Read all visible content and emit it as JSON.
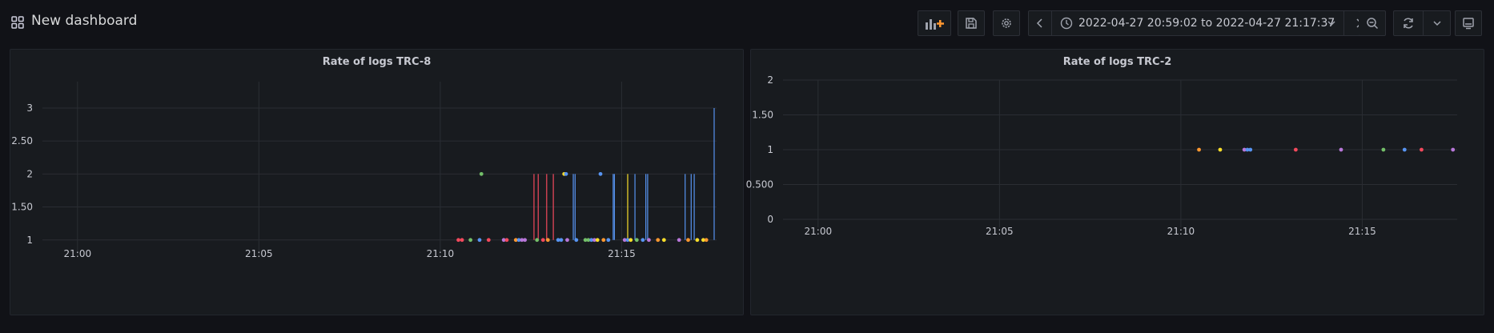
{
  "header": {
    "title": "New dashboard",
    "time_range": "2022-04-27 20:59:02 to 2022-04-27 21:17:37"
  },
  "colors": {
    "background": "#111217",
    "panel": "#181b1f",
    "green": "#73bf69",
    "yellow": "#fade2a",
    "blue": "#5794f2",
    "orange": "#ff9830",
    "red": "#f2495c",
    "purple": "#b877d9"
  },
  "icons": [
    "dashboard-grid-icon",
    "add-panel-icon",
    "save-icon",
    "settings-gear-icon",
    "chevron-left-icon",
    "clock-icon",
    "chevron-down-icon",
    "chevron-right-icon",
    "zoom-out-icon",
    "refresh-icon",
    "tv-mode-icon"
  ],
  "chart_data": [
    {
      "type": "line",
      "title": "Rate of logs TRC-8",
      "xlabel": "",
      "ylabel": "",
      "x_ticks": [
        "21:00",
        "21:05",
        "21:10",
        "21:15"
      ],
      "y_ticks": [
        "1",
        "1.50",
        "2",
        "2.50",
        "3"
      ],
      "ylim": [
        0.9,
        3.4
      ],
      "xlim": [
        "20:59:02",
        "21:17:37"
      ],
      "grid": true,
      "points": [
        {
          "t": "21:10:30",
          "v": 1,
          "color": "red"
        },
        {
          "t": "21:10:36",
          "v": 1,
          "color": "red"
        },
        {
          "t": "21:10:50",
          "v": 1,
          "color": "green"
        },
        {
          "t": "21:11:05",
          "v": 1,
          "color": "blue"
        },
        {
          "t": "21:11:08",
          "v": 2,
          "color": "green"
        },
        {
          "t": "21:11:20",
          "v": 1,
          "color": "red"
        },
        {
          "t": "21:11:45",
          "v": 1,
          "color": "purple"
        },
        {
          "t": "21:11:50",
          "v": 1,
          "color": "red"
        },
        {
          "t": "21:12:05",
          "v": 1,
          "color": "orange"
        },
        {
          "t": "21:12:10",
          "v": 1,
          "color": "blue"
        },
        {
          "t": "21:12:15",
          "v": 1,
          "color": "purple"
        },
        {
          "t": "21:12:20",
          "v": 1,
          "color": "purple"
        },
        {
          "t": "21:12:40",
          "v": 1,
          "color": "green"
        },
        {
          "t": "21:12:50",
          "v": 1,
          "color": "red"
        },
        {
          "t": "21:12:58",
          "v": 1,
          "color": "orange"
        },
        {
          "t": "21:13:15",
          "v": 1,
          "color": "blue"
        },
        {
          "t": "21:13:20",
          "v": 1,
          "color": "blue"
        },
        {
          "t": "21:13:25",
          "v": 2,
          "color": "yellow"
        },
        {
          "t": "21:13:28",
          "v": 2,
          "color": "blue"
        },
        {
          "t": "21:13:30",
          "v": 1,
          "color": "purple"
        },
        {
          "t": "21:13:45",
          "v": 1,
          "color": "blue"
        },
        {
          "t": "21:14:00",
          "v": 1,
          "color": "green"
        },
        {
          "t": "21:14:05",
          "v": 1,
          "color": "green"
        },
        {
          "t": "21:14:10",
          "v": 1,
          "color": "blue"
        },
        {
          "t": "21:14:15",
          "v": 1,
          "color": "purple"
        },
        {
          "t": "21:14:20",
          "v": 1,
          "color": "yellow"
        },
        {
          "t": "21:14:25",
          "v": 2,
          "color": "blue"
        },
        {
          "t": "21:14:30",
          "v": 1,
          "color": "orange"
        },
        {
          "t": "21:14:38",
          "v": 1,
          "color": "blue"
        },
        {
          "t": "21:15:05",
          "v": 1,
          "color": "purple"
        },
        {
          "t": "21:15:10",
          "v": 1,
          "color": "blue"
        },
        {
          "t": "21:15:15",
          "v": 1,
          "color": "yellow"
        },
        {
          "t": "21:15:25",
          "v": 1,
          "color": "green"
        },
        {
          "t": "21:15:35",
          "v": 1,
          "color": "blue"
        },
        {
          "t": "21:15:45",
          "v": 1,
          "color": "purple"
        },
        {
          "t": "21:16:00",
          "v": 1,
          "color": "orange"
        },
        {
          "t": "21:16:10",
          "v": 1,
          "color": "yellow"
        },
        {
          "t": "21:16:35",
          "v": 1,
          "color": "purple"
        },
        {
          "t": "21:16:50",
          "v": 1,
          "color": "orange"
        },
        {
          "t": "21:17:05",
          "v": 1,
          "color": "yellow"
        },
        {
          "t": "21:17:15",
          "v": 1,
          "color": "yellow"
        },
        {
          "t": "21:17:20",
          "v": 1,
          "color": "orange"
        }
      ],
      "spikes": [
        {
          "t": "21:12:35",
          "v": 2,
          "color": "red"
        },
        {
          "t": "21:12:42",
          "v": 2,
          "color": "red"
        },
        {
          "t": "21:12:56",
          "v": 2,
          "color": "red"
        },
        {
          "t": "21:13:07",
          "v": 2,
          "color": "red"
        },
        {
          "t": "21:13:40",
          "v": 2,
          "color": "blue"
        },
        {
          "t": "21:13:43",
          "v": 2,
          "color": "blue"
        },
        {
          "t": "21:14:46",
          "v": 2,
          "color": "blue"
        },
        {
          "t": "21:14:48",
          "v": 2,
          "color": "blue"
        },
        {
          "t": "21:15:10",
          "v": 2,
          "color": "yellow"
        },
        {
          "t": "21:15:22",
          "v": 2,
          "color": "blue"
        },
        {
          "t": "21:15:40",
          "v": 2,
          "color": "blue"
        },
        {
          "t": "21:15:43",
          "v": 2,
          "color": "blue"
        },
        {
          "t": "21:16:45",
          "v": 2,
          "color": "blue"
        },
        {
          "t": "21:16:55",
          "v": 2,
          "color": "blue"
        },
        {
          "t": "21:17:00",
          "v": 2,
          "color": "blue"
        },
        {
          "t": "21:17:33",
          "v": 3,
          "color": "blue"
        }
      ]
    },
    {
      "type": "scatter",
      "title": "Rate of logs TRC-2",
      "xlabel": "",
      "ylabel": "",
      "x_ticks": [
        "21:00",
        "21:05",
        "21:10",
        "21:15"
      ],
      "y_ticks": [
        "0",
        "0.500",
        "1",
        "1.50",
        "2"
      ],
      "ylim": [
        0,
        2
      ],
      "xlim": [
        "20:59:02",
        "21:17:37"
      ],
      "grid": true,
      "points": [
        {
          "t": "21:10:30",
          "v": 1,
          "color": "orange"
        },
        {
          "t": "21:11:05",
          "v": 1,
          "color": "yellow"
        },
        {
          "t": "21:11:45",
          "v": 1,
          "color": "purple"
        },
        {
          "t": "21:11:50",
          "v": 1,
          "color": "blue"
        },
        {
          "t": "21:11:55",
          "v": 1,
          "color": "blue"
        },
        {
          "t": "21:13:10",
          "v": 1,
          "color": "red"
        },
        {
          "t": "21:14:25",
          "v": 1,
          "color": "purple"
        },
        {
          "t": "21:15:35",
          "v": 1,
          "color": "green"
        },
        {
          "t": "21:16:10",
          "v": 1,
          "color": "blue"
        },
        {
          "t": "21:16:38",
          "v": 1,
          "color": "red"
        },
        {
          "t": "21:17:30",
          "v": 1,
          "color": "purple"
        }
      ]
    }
  ]
}
